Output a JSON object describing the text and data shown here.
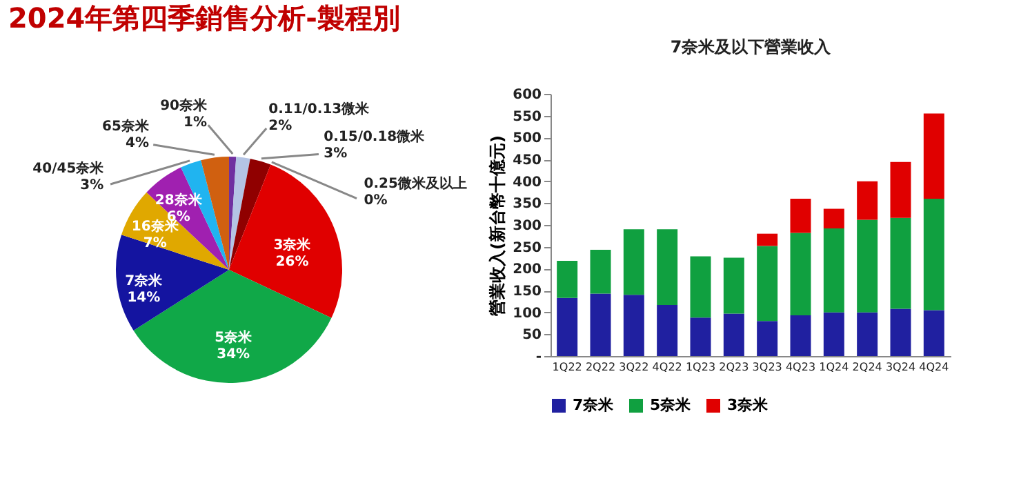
{
  "chart_data": [
    {
      "type": "pie",
      "title": "2024年第四季銷售分析-製程別",
      "categories": [
        "90奈米",
        "0.11/0.13微米",
        "0.15/0.18微米",
        "0.25微米及以上",
        "3奈米",
        "5奈米",
        "7奈米",
        "16奈米",
        "28奈米",
        "40/45奈米",
        "65奈米"
      ],
      "values": [
        1,
        2,
        3,
        0,
        26,
        34,
        14,
        7,
        6,
        3,
        4
      ],
      "value_labels": [
        "1%",
        "2%",
        "3%",
        "0%",
        "26%",
        "34%",
        "14%",
        "7%",
        "6%",
        "3%",
        "4%"
      ],
      "colors": [
        "#7030a0",
        "#b4c4e4",
        "#900000",
        "#c00000",
        "#e00000",
        "#10a848",
        "#1414a0",
        "#e0a800",
        "#a020b0",
        "#20b4f0",
        "#d06010"
      ]
    },
    {
      "type": "bar",
      "title": "7奈米及以下營業收入",
      "ylabel": "營業收入(新台幣十億元)",
      "categories": [
        "1Q22",
        "2Q22",
        "3Q22",
        "4Q22",
        "1Q23",
        "2Q23",
        "3Q23",
        "4Q23",
        "1Q24",
        "2Q24",
        "3Q24",
        "4Q24"
      ],
      "stacked": true,
      "series": [
        {
          "name": "7奈米",
          "color": "#2020a0",
          "values": [
            133,
            143,
            140,
            117,
            88,
            97,
            80,
            93,
            100,
            100,
            108,
            105
          ]
        },
        {
          "name": "5奈米",
          "color": "#10a040",
          "values": [
            85,
            100,
            150,
            173,
            140,
            128,
            172,
            189,
            192,
            212,
            208,
            255
          ]
        },
        {
          "name": "3奈米",
          "color": "#e00000",
          "values": [
            null,
            null,
            null,
            null,
            null,
            null,
            28,
            78,
            45,
            88,
            128,
            195
          ]
        }
      ],
      "ylim": [
        0,
        600
      ],
      "yticks": [
        {
          "value": 0,
          "label": "-"
        },
        50,
        100,
        150,
        200,
        250,
        300,
        350,
        400,
        450,
        500,
        550,
        600
      ],
      "legend": "bottom"
    }
  ]
}
